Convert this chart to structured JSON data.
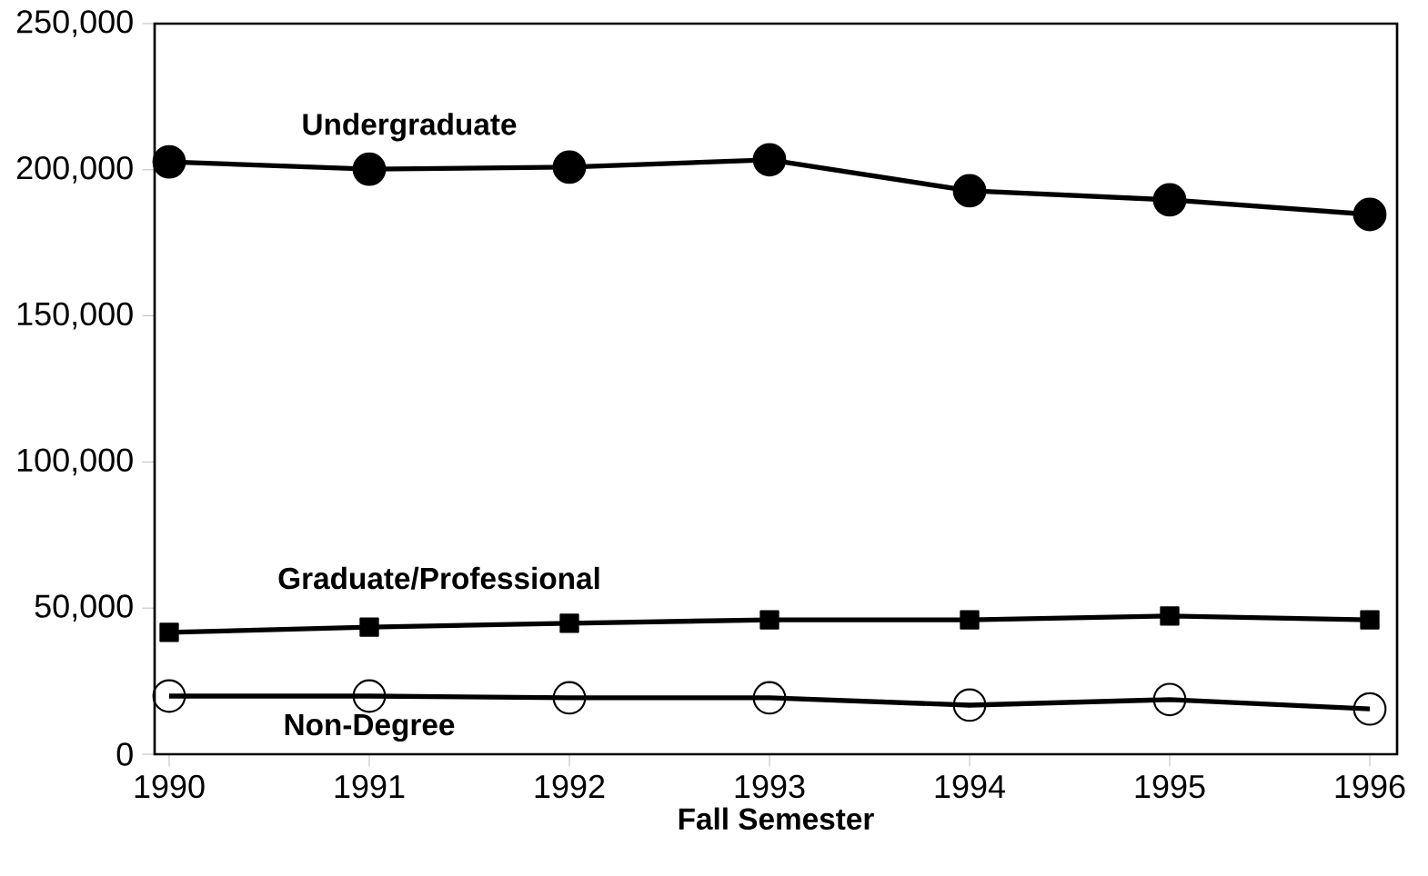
{
  "chart_data": {
    "type": "line",
    "xlabel": "Fall Semester",
    "categories": [
      "1990",
      "1991",
      "1992",
      "1993",
      "1994",
      "1995",
      "1996"
    ],
    "series": [
      {
        "name": "Undergraduate",
        "color": "#000000",
        "marker": "circle",
        "values": [
          202700,
          200200,
          200900,
          203400,
          192800,
          189700,
          184700
        ]
      },
      {
        "name": "Graduate/Professional",
        "color": "#000000",
        "marker": "square",
        "values": [
          41700,
          43500,
          44800,
          46000,
          46000,
          47300,
          46000
        ]
      },
      {
        "name": "Non-Degree",
        "color": "#000000",
        "marker": "circle",
        "values": [
          19900,
          19900,
          19300,
          19300,
          16800,
          18700,
          15500
        ]
      }
    ],
    "ylim": [
      0,
      250000
    ],
    "yticks": [
      {
        "value": 0,
        "label": "0"
      },
      {
        "value": 50000,
        "label": "50,000"
      },
      {
        "value": 100000,
        "label": "100,000"
      },
      {
        "value": 150000,
        "label": "150,000"
      },
      {
        "value": 200000,
        "label": "200,000"
      },
      {
        "value": 250000,
        "label": "250,000"
      }
    ],
    "grid": false,
    "line_style": "solid"
  }
}
